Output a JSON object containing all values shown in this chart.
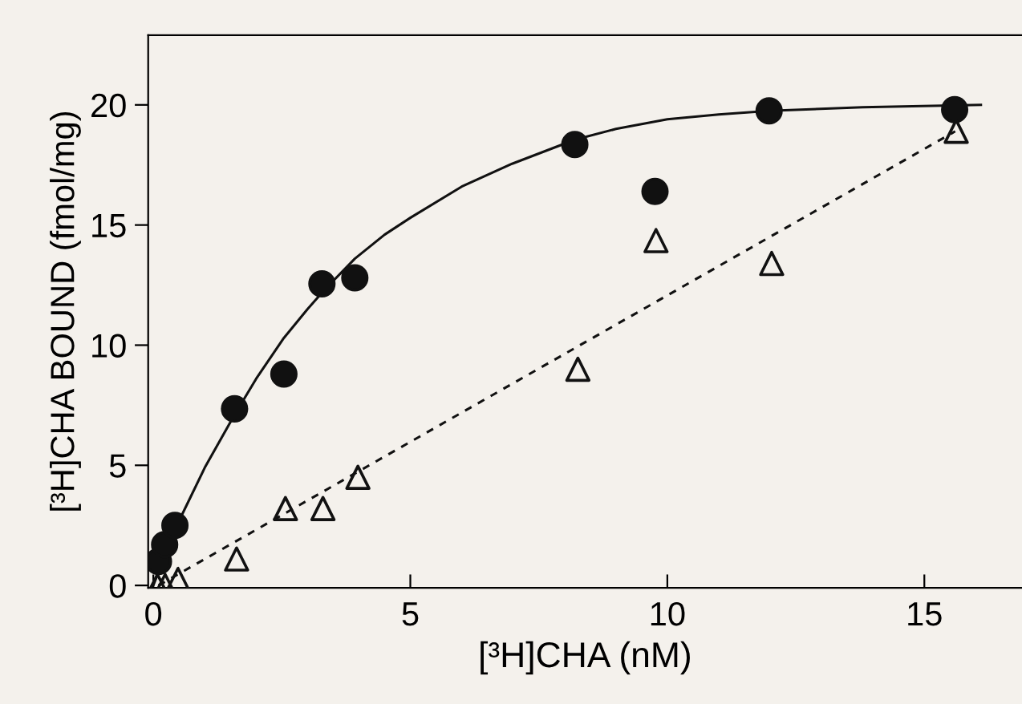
{
  "chart_data": {
    "type": "scatter",
    "xlabel": "[³H]CHA (nM)",
    "ylabel": "[³H]CHA BOUND (fmol/mg)",
    "xlim": [
      -0.1,
      16.9
    ],
    "ylim": [
      -0.1,
      22.9
    ],
    "xticks": [
      0,
      5,
      10,
      15
    ],
    "yticks": [
      0,
      5,
      10,
      15,
      20
    ],
    "grid": false,
    "legend": false,
    "series": [
      {
        "type": "line",
        "color": "#111111",
        "line_style": "solid",
        "marker": "none",
        "x": [
          0,
          0.48,
          1.0,
          1.58,
          2.0,
          2.54,
          3.0,
          3.33,
          3.92,
          4.5,
          5,
          6.0,
          6.98,
          8.2,
          9.0,
          10,
          11.0,
          11.98,
          13.8,
          16.1
        ],
        "values": [
          0,
          2.6,
          4.9,
          7.1,
          8.6,
          10.3,
          11.5,
          12.3,
          13.6,
          14.6,
          15.3,
          16.6,
          17.55,
          18.55,
          19.0,
          19.4,
          19.6,
          19.75,
          19.9,
          20.0
        ]
      },
      {
        "type": "line",
        "color": "#111111",
        "line_style": "dashed",
        "marker": "none",
        "x": [
          0.1,
          15.6
        ],
        "values": [
          0,
          18.9
        ]
      },
      {
        "color": "#111111",
        "marker": "circle",
        "x": [
          0.1,
          0.22,
          0.42,
          1.58,
          2.54,
          3.28,
          3.92,
          8.2,
          9.76,
          11.98,
          15.59
        ],
        "values": [
          1.0,
          1.7,
          2.5,
          7.35,
          8.8,
          12.55,
          12.8,
          18.35,
          16.4,
          19.75,
          19.8
        ]
      },
      {
        "color": "#111111",
        "marker": "triangle",
        "x": [
          0.08,
          0.23,
          0.48,
          1.62,
          2.57,
          3.3,
          3.98,
          8.26,
          9.78,
          12.03,
          15.62
        ],
        "values": [
          0,
          0,
          0.25,
          1.1,
          3.2,
          3.2,
          4.5,
          9.0,
          14.35,
          13.4,
          18.9
        ]
      }
    ]
  }
}
